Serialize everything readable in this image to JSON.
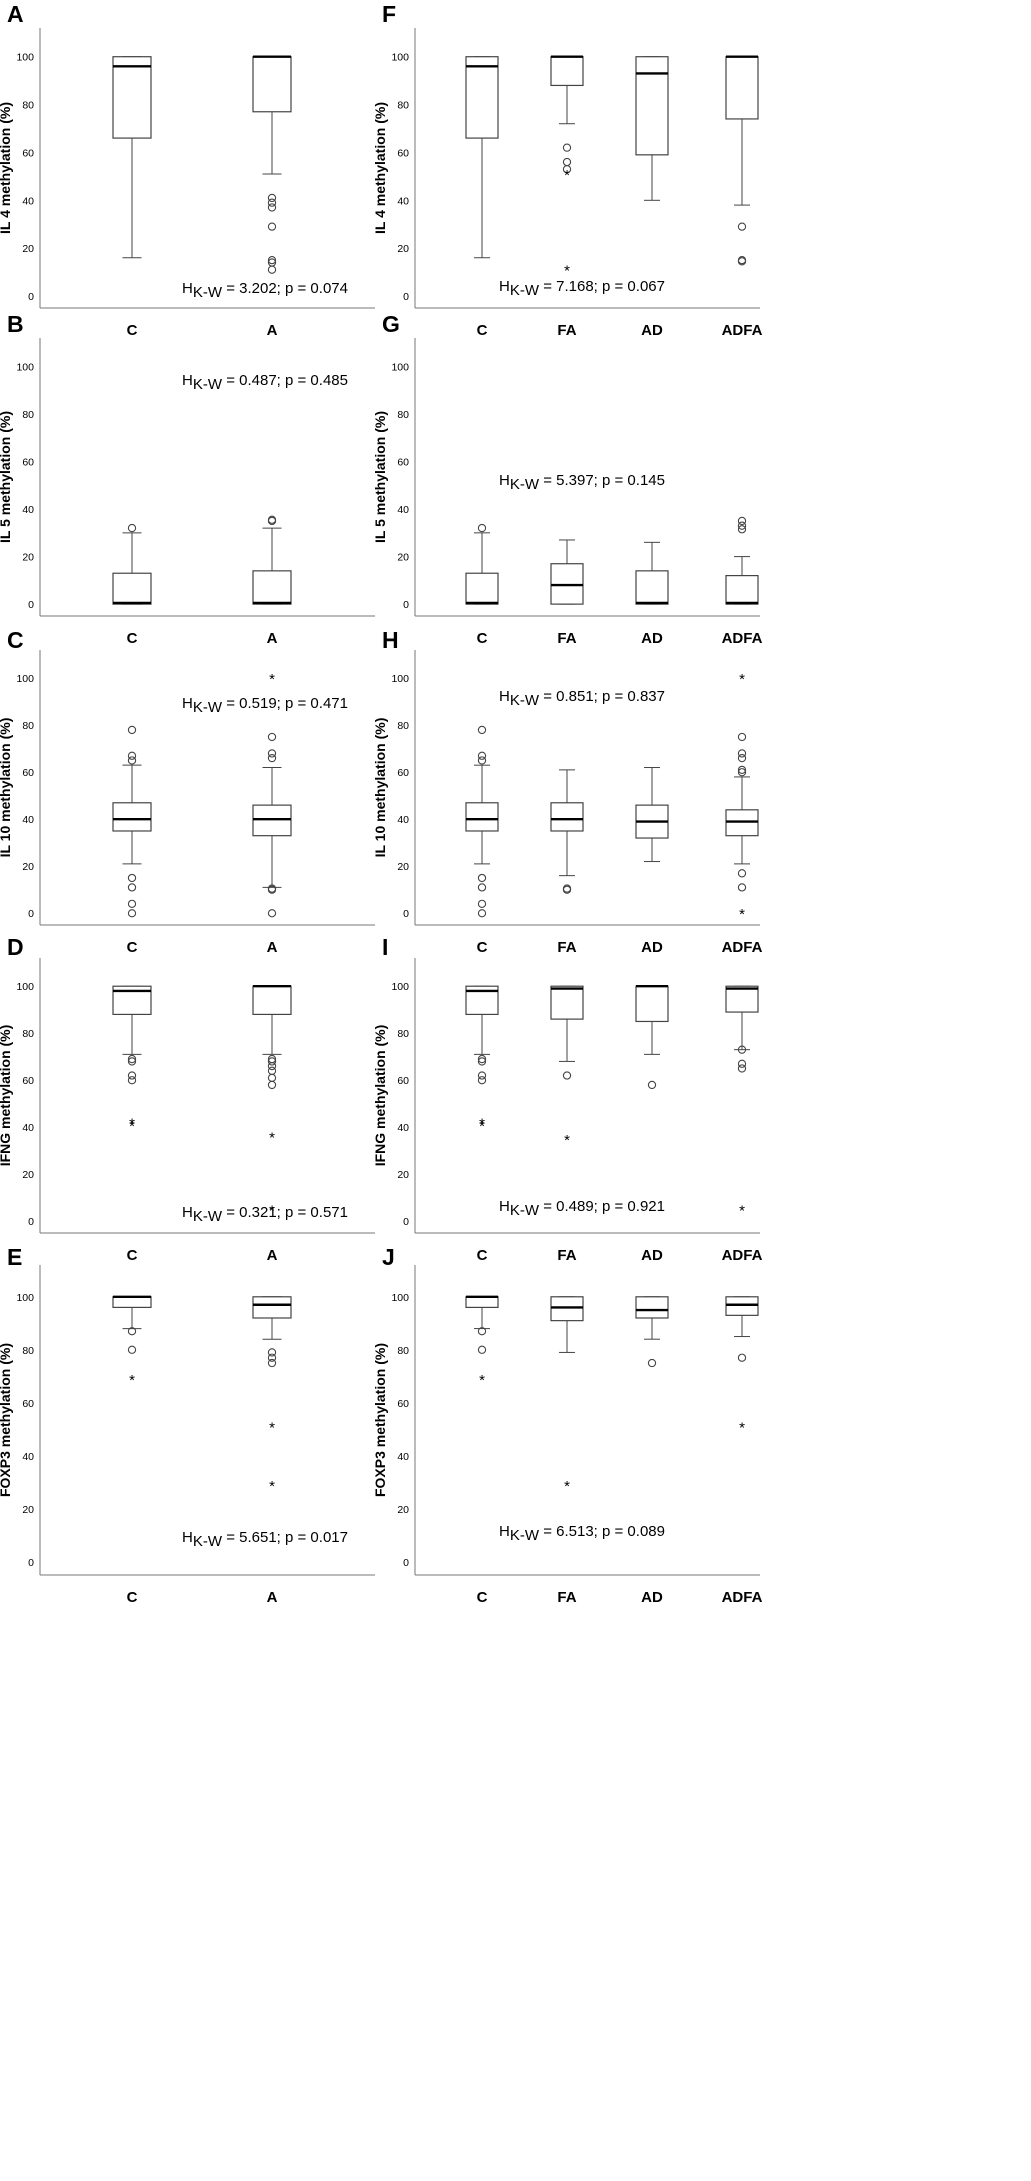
{
  "figure": {
    "ylim": [
      -5,
      112
    ],
    "y_ticks": [
      "0",
      "20",
      "40",
      "60",
      "80",
      "100"
    ]
  },
  "chart_data": [
    {
      "panel": "A",
      "type": "box",
      "ylabel": "IL 4 methylation (%)",
      "ylim": [
        -5,
        112
      ],
      "stat_prefix": "H",
      "stat_sub": "K-W",
      "stat_text": " = 3.202; p = 0.074",
      "groups": [
        {
          "category": "C",
          "q1": 66,
          "median": 96,
          "q3": 100,
          "whisker_low": 16,
          "whisker_high": 100,
          "outliers": [],
          "extremes": []
        },
        {
          "category": "A",
          "q1": 77,
          "median": 100,
          "q3": 100,
          "whisker_low": 51,
          "whisker_high": 100,
          "outliers": [
            41,
            39,
            37,
            29,
            15,
            14,
            11
          ],
          "extremes": []
        }
      ]
    },
    {
      "panel": "B",
      "type": "box",
      "ylabel": "IL 5 methylation (%)",
      "ylim": [
        -5,
        112
      ],
      "stat_prefix": "H",
      "stat_sub": "K-W",
      "stat_text": " = 0.487; p = 0.485",
      "groups": [
        {
          "category": "C",
          "q1": 0,
          "median": 0.5,
          "q3": 13,
          "whisker_low": 0,
          "whisker_high": 30,
          "outliers": [
            32
          ],
          "extremes": []
        },
        {
          "category": "A",
          "q1": 0,
          "median": 0.5,
          "q3": 14,
          "whisker_low": 0,
          "whisker_high": 32,
          "outliers": [
            35,
            35.5
          ],
          "extremes": []
        }
      ]
    },
    {
      "panel": "C",
      "type": "box",
      "ylabel": "IL 10 methylation (%)",
      "ylim": [
        -5,
        112
      ],
      "stat_prefix": "H",
      "stat_sub": "K-W",
      "stat_text": " = 0.519; p = 0.471",
      "groups": [
        {
          "category": "C",
          "q1": 35,
          "median": 40,
          "q3": 47,
          "whisker_low": 21,
          "whisker_high": 63,
          "outliers": [
            78,
            67,
            65,
            15,
            11,
            4,
            0
          ],
          "extremes": []
        },
        {
          "category": "A",
          "q1": 33,
          "median": 40,
          "q3": 46,
          "whisker_low": 11,
          "whisker_high": 62,
          "outliers": [
            75,
            68,
            66,
            10,
            10.5,
            0
          ],
          "extremes": [
            100
          ]
        }
      ]
    },
    {
      "panel": "D",
      "type": "box",
      "ylabel": "IFNG methylation (%)",
      "ylim": [
        -5,
        112
      ],
      "stat_prefix": "H",
      "stat_sub": "K-W",
      "stat_text": " = 0.321; p = 0.571",
      "groups": [
        {
          "category": "C",
          "q1": 88,
          "median": 98,
          "q3": 100,
          "whisker_low": 71,
          "whisker_high": 100,
          "outliers": [
            69,
            68,
            62,
            60
          ],
          "extremes": [
            42,
            41
          ]
        },
        {
          "category": "A",
          "q1": 88,
          "median": 100,
          "q3": 100,
          "whisker_low": 71,
          "whisker_high": 100,
          "outliers": [
            69,
            68,
            66,
            64,
            61,
            58
          ],
          "extremes": [
            36,
            5
          ]
        }
      ]
    },
    {
      "panel": "E",
      "type": "box",
      "ylabel": "FOXP3 methylation (%)",
      "ylim": [
        -5,
        112
      ],
      "stat_prefix": "H",
      "stat_sub": "K-W",
      "stat_text": " = 5.651; p = 0.017",
      "groups": [
        {
          "category": "C",
          "q1": 96,
          "median": 100,
          "q3": 100,
          "whisker_low": 88,
          "whisker_high": 100,
          "outliers": [
            87,
            80
          ],
          "extremes": [
            69
          ]
        },
        {
          "category": "A",
          "q1": 92,
          "median": 97,
          "q3": 100,
          "whisker_low": 84,
          "whisker_high": 100,
          "outliers": [
            79,
            77,
            75
          ],
          "extremes": [
            51,
            29
          ]
        }
      ]
    },
    {
      "panel": "F",
      "type": "box",
      "ylabel": "IL 4 methylation (%)",
      "ylim": [
        -5,
        112
      ],
      "stat_prefix": "H",
      "stat_sub": "K-W",
      "stat_text": " = 7.168; p = 0.067",
      "groups": [
        {
          "category": "C",
          "q1": 66,
          "median": 96,
          "q3": 100,
          "whisker_low": 16,
          "whisker_high": 100,
          "outliers": [],
          "extremes": []
        },
        {
          "category": "FA",
          "q1": 88,
          "median": 100,
          "q3": 100,
          "whisker_low": 72,
          "whisker_high": 100,
          "outliers": [
            62,
            56,
            53
          ],
          "extremes": [
            51,
            11
          ]
        },
        {
          "category": "AD",
          "q1": 59,
          "median": 93,
          "q3": 100,
          "whisker_low": 40,
          "whisker_high": 100,
          "outliers": [],
          "extremes": []
        },
        {
          "category": "ADFA",
          "q1": 74,
          "median": 100,
          "q3": 100,
          "whisker_low": 38,
          "whisker_high": 100,
          "outliers": [
            29,
            15,
            14.5
          ],
          "extremes": []
        }
      ]
    },
    {
      "panel": "G",
      "type": "box",
      "ylabel": "IL 5 methylation (%)",
      "ylim": [
        -5,
        112
      ],
      "stat_prefix": "H",
      "stat_sub": "K-W",
      "stat_text": " = 5.397; p = 0.145",
      "groups": [
        {
          "category": "C",
          "q1": 0,
          "median": 0.5,
          "q3": 13,
          "whisker_low": 0,
          "whisker_high": 30,
          "outliers": [
            32
          ],
          "extremes": []
        },
        {
          "category": "FA",
          "q1": 0,
          "median": 8,
          "q3": 17,
          "whisker_low": 0,
          "whisker_high": 27,
          "outliers": [],
          "extremes": []
        },
        {
          "category": "AD",
          "q1": 0,
          "median": 0.5,
          "q3": 14,
          "whisker_low": 0,
          "whisker_high": 26,
          "outliers": [],
          "extremes": []
        },
        {
          "category": "ADFA",
          "q1": 0,
          "median": 0.5,
          "q3": 12,
          "whisker_low": 0,
          "whisker_high": 20,
          "outliers": [
            35,
            33,
            31.5
          ],
          "extremes": []
        }
      ]
    },
    {
      "panel": "H",
      "type": "box",
      "ylabel": "IL 10 methylation (%)",
      "ylim": [
        -5,
        112
      ],
      "stat_prefix": "H",
      "stat_sub": "K-W",
      "stat_text": " = 0.851; p = 0.837",
      "groups": [
        {
          "category": "C",
          "q1": 35,
          "median": 40,
          "q3": 47,
          "whisker_low": 21,
          "whisker_high": 63,
          "outliers": [
            78,
            67,
            65,
            15,
            11,
            4,
            0
          ],
          "extremes": []
        },
        {
          "category": "FA",
          "q1": 35,
          "median": 40,
          "q3": 47,
          "whisker_low": 16,
          "whisker_high": 61,
          "outliers": [
            10,
            10.5
          ],
          "extremes": []
        },
        {
          "category": "AD",
          "q1": 32,
          "median": 39,
          "q3": 46,
          "whisker_low": 22,
          "whisker_high": 62,
          "outliers": [],
          "extremes": []
        },
        {
          "category": "ADFA",
          "q1": 33,
          "median": 39,
          "q3": 44,
          "whisker_low": 21,
          "whisker_high": 58,
          "outliers": [
            75,
            68,
            66,
            61,
            60,
            17,
            11
          ],
          "extremes": [
            100,
            0
          ]
        }
      ]
    },
    {
      "panel": "I",
      "type": "box",
      "ylabel": "IFNG methylation (%)",
      "ylim": [
        -5,
        112
      ],
      "stat_prefix": "H",
      "stat_sub": "K-W",
      "stat_text": " = 0.489; p = 0.921",
      "groups": [
        {
          "category": "C",
          "q1": 88,
          "median": 98,
          "q3": 100,
          "whisker_low": 71,
          "whisker_high": 100,
          "outliers": [
            69,
            68,
            62,
            60
          ],
          "extremes": [
            42,
            41
          ]
        },
        {
          "category": "FA",
          "q1": 86,
          "median": 99,
          "q3": 100,
          "whisker_low": 68,
          "whisker_high": 100,
          "outliers": [
            62
          ],
          "extremes": [
            35
          ]
        },
        {
          "category": "AD",
          "q1": 85,
          "median": 100,
          "q3": 100,
          "whisker_low": 71,
          "whisker_high": 100,
          "outliers": [
            58
          ],
          "extremes": []
        },
        {
          "category": "ADFA",
          "q1": 89,
          "median": 99,
          "q3": 100,
          "whisker_low": 73,
          "whisker_high": 100,
          "outliers": [
            73,
            67,
            65
          ],
          "extremes": [
            5
          ]
        }
      ]
    },
    {
      "panel": "J",
      "type": "box",
      "ylabel": "FOXP3 methylation (%)",
      "ylim": [
        -5,
        112
      ],
      "stat_prefix": "H",
      "stat_sub": "K-W",
      "stat_text": " = 6.513; p = 0.089",
      "groups": [
        {
          "category": "C",
          "q1": 96,
          "median": 100,
          "q3": 100,
          "whisker_low": 88,
          "whisker_high": 100,
          "outliers": [
            87,
            80
          ],
          "extremes": [
            69
          ]
        },
        {
          "category": "FA",
          "q1": 91,
          "median": 96,
          "q3": 100,
          "whisker_low": 79,
          "whisker_high": 100,
          "outliers": [],
          "extremes": [
            29
          ]
        },
        {
          "category": "AD",
          "q1": 92,
          "median": 95,
          "q3": 100,
          "whisker_low": 84,
          "whisker_high": 100,
          "outliers": [
            75
          ],
          "extremes": []
        },
        {
          "category": "ADFA",
          "q1": 93,
          "median": 97,
          "q3": 100,
          "whisker_low": 85,
          "whisker_high": 100,
          "outliers": [
            77
          ],
          "extremes": [
            51
          ]
        }
      ]
    }
  ]
}
